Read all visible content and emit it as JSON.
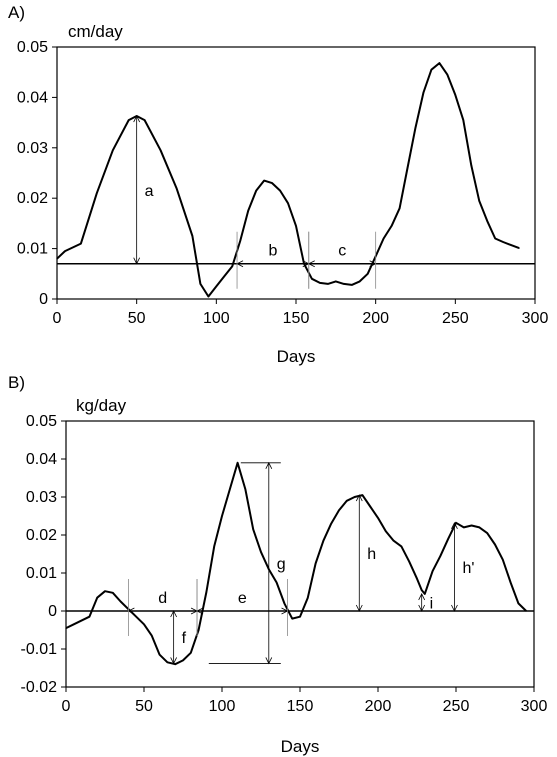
{
  "chart_data": [
    {
      "type": "line",
      "panel_label": "A)",
      "ylabel": "cm/day",
      "xlabel": "Days",
      "xlim": [
        0,
        300
      ],
      "ylim": [
        0,
        0.05
      ],
      "xticks": [
        "0",
        "50",
        "100",
        "150",
        "200",
        "250",
        "300"
      ],
      "yticks": [
        "0",
        "0.01",
        "0.02",
        "0.03",
        "0.04",
        "0.05"
      ],
      "grid": false,
      "series": [
        {
          "x": [
            0,
            5,
            15,
            25,
            35,
            45,
            50,
            55,
            65,
            75,
            85,
            90,
            95,
            100,
            105,
            110,
            115,
            120,
            125,
            130,
            135,
            140,
            145,
            150,
            155,
            160,
            165,
            170,
            175,
            180,
            185,
            190,
            195,
            200,
            205,
            210,
            215,
            220,
            225,
            230,
            235,
            240,
            245,
            250,
            255,
            260,
            265,
            270,
            275,
            280,
            285,
            290
          ],
          "y": [
            0.008,
            0.0095,
            0.011,
            0.021,
            0.0295,
            0.0355,
            0.0363,
            0.0355,
            0.0295,
            0.022,
            0.0125,
            0.003,
            0.0005,
            0.0025,
            0.0045,
            0.0065,
            0.0115,
            0.0175,
            0.0215,
            0.0235,
            0.023,
            0.0215,
            0.019,
            0.0145,
            0.007,
            0.004,
            0.0032,
            0.003,
            0.0035,
            0.003,
            0.0028,
            0.0035,
            0.005,
            0.0085,
            0.012,
            0.0145,
            0.018,
            0.026,
            0.034,
            0.041,
            0.0455,
            0.0468,
            0.0445,
            0.0405,
            0.0355,
            0.0265,
            0.0195,
            0.0155,
            0.012,
            0.0113,
            0.0107,
            0.0101
          ]
        }
      ],
      "baseline": 0.007,
      "annotations": [
        {
          "label": "a",
          "x": 50,
          "y_from": 0.007,
          "y_to": 0.0363
        },
        {
          "label": "b",
          "x_from": 113,
          "x_to": 158,
          "y": 0.007
        },
        {
          "label": "c",
          "x_from": 158,
          "x_to": 200,
          "y": 0.007
        }
      ]
    },
    {
      "type": "line",
      "panel_label": "B)",
      "ylabel": "kg/day",
      "xlabel": "Days",
      "xlim": [
        0,
        300
      ],
      "ylim": [
        -0.02,
        0.05
      ],
      "xticks": [
        "0",
        "50",
        "100",
        "150",
        "200",
        "250",
        "300"
      ],
      "yticks": [
        "-0.02",
        "-0.01",
        "0",
        "0.01",
        "0.02",
        "0.03",
        "0.04",
        "0.05"
      ],
      "grid": false,
      "series": [
        {
          "x": [
            0,
            5,
            15,
            20,
            25,
            30,
            35,
            40,
            45,
            50,
            55,
            60,
            65,
            70,
            75,
            80,
            85,
            90,
            95,
            100,
            105,
            110,
            115,
            120,
            125,
            130,
            135,
            140,
            145,
            150,
            155,
            160,
            165,
            170,
            175,
            180,
            185,
            190,
            195,
            200,
            205,
            210,
            215,
            220,
            225,
            228,
            230,
            235,
            240,
            245,
            250,
            255,
            260,
            265,
            270,
            275,
            280,
            285,
            290,
            295
          ],
          "y": [
            -0.0045,
            -0.0035,
            -0.0015,
            0.0035,
            0.0052,
            0.0048,
            0.0025,
            0.0005,
            -0.0015,
            -0.0035,
            -0.0065,
            -0.0115,
            -0.0135,
            -0.014,
            -0.013,
            -0.011,
            -0.005,
            0.005,
            0.017,
            0.025,
            0.032,
            0.039,
            0.032,
            0.0215,
            0.0155,
            0.011,
            0.0075,
            0.002,
            -0.002,
            -0.0015,
            0.0035,
            0.0125,
            0.0185,
            0.023,
            0.0265,
            0.029,
            0.03,
            0.0305,
            0.0275,
            0.0245,
            0.021,
            0.0185,
            0.017,
            0.013,
            0.0085,
            0.0055,
            0.0045,
            0.0105,
            0.0145,
            0.019,
            0.0232,
            0.022,
            0.0225,
            0.022,
            0.0205,
            0.0175,
            0.0135,
            0.0075,
            0.002,
            0.0
          ]
        }
      ],
      "baseline": 0,
      "annotations": [
        {
          "label": "d",
          "x_from": 40,
          "x_to": 84,
          "y": 0
        },
        {
          "label": "e",
          "x_from": 84,
          "x_to": 142,
          "y": 0
        },
        {
          "label": "f",
          "x": 69,
          "y_from": 0,
          "y_to": -0.0138
        },
        {
          "label": "g",
          "x": 130,
          "y_from": -0.0138,
          "y_to": 0.039
        },
        {
          "label": "h",
          "x": 188,
          "y_from": 0,
          "y_to": 0.0305
        },
        {
          "label": "i",
          "x": 228,
          "y_from": 0,
          "y_to": 0.0045
        },
        {
          "label": "h'",
          "x": 249,
          "y_from": 0,
          "y_to": 0.0232
        }
      ]
    }
  ]
}
